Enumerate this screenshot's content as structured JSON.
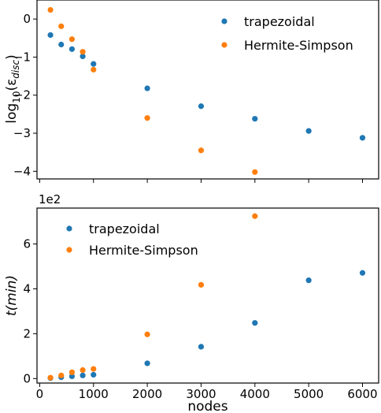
{
  "chart_data": [
    {
      "type": "scatter",
      "panel": "top",
      "xlabel": "",
      "ylabel_main": "log",
      "ylabel_sub": "10",
      "ylabel_paren": "(ε",
      "ylabel_inner": "disc",
      "ylabel_close": ")",
      "xlim": [
        -50,
        6300
      ],
      "ylim": [
        -4.2,
        0.5
      ],
      "xticks": [
        0,
        1000,
        2000,
        3000,
        4000,
        5000,
        6000
      ],
      "yticks": [
        0,
        -1,
        -2,
        -3,
        -4
      ],
      "ytick_labels": [
        "0",
        "−1",
        "−2",
        "−3",
        "−4"
      ],
      "legend_position": "top-right",
      "series": [
        {
          "name": "trapezoidal",
          "color": "#1f77b4",
          "points": [
            [
              200,
              -0.42
            ],
            [
              400,
              -0.67
            ],
            [
              600,
              -0.79
            ],
            [
              800,
              -0.98
            ],
            [
              1000,
              -1.18
            ],
            [
              2000,
              -1.82
            ],
            [
              3000,
              -2.29
            ],
            [
              4000,
              -2.62
            ],
            [
              5000,
              -2.94
            ],
            [
              6000,
              -3.12
            ]
          ]
        },
        {
          "name": "Hermite-Simpson",
          "color": "#ff7f0e",
          "points": [
            [
              200,
              0.24
            ],
            [
              400,
              -0.19
            ],
            [
              600,
              -0.53
            ],
            [
              800,
              -0.86
            ],
            [
              1000,
              -1.33
            ],
            [
              2000,
              -2.6
            ],
            [
              3000,
              -3.45
            ],
            [
              4000,
              -4.02
            ]
          ]
        }
      ]
    },
    {
      "type": "scatter",
      "panel": "bottom",
      "xlabel": "nodes",
      "ylabel": "t(min)",
      "offset_text": "1e2",
      "xlim": [
        -50,
        6300
      ],
      "ylim": [
        -0.2,
        7.6
      ],
      "xticks": [
        0,
        1000,
        2000,
        3000,
        4000,
        5000,
        6000
      ],
      "yticks": [
        0,
        2,
        4,
        6
      ],
      "ytick_labels": [
        "0",
        "2",
        "4",
        "6"
      ],
      "legend_position": "top-left",
      "series": [
        {
          "name": "trapezoidal",
          "color": "#1f77b4",
          "points": [
            [
              200,
              0.02
            ],
            [
              400,
              0.06
            ],
            [
              600,
              0.1
            ],
            [
              800,
              0.14
            ],
            [
              1000,
              0.17
            ],
            [
              2000,
              0.68
            ],
            [
              3000,
              1.42
            ],
            [
              4000,
              2.48
            ],
            [
              5000,
              4.38
            ],
            [
              6000,
              4.71
            ]
          ]
        },
        {
          "name": "Hermite-Simpson",
          "color": "#ff7f0e",
          "points": [
            [
              200,
              0.04
            ],
            [
              400,
              0.14
            ],
            [
              600,
              0.28
            ],
            [
              800,
              0.38
            ],
            [
              1000,
              0.43
            ],
            [
              2000,
              1.97
            ],
            [
              3000,
              4.18
            ],
            [
              4000,
              7.24
            ]
          ]
        }
      ]
    }
  ]
}
